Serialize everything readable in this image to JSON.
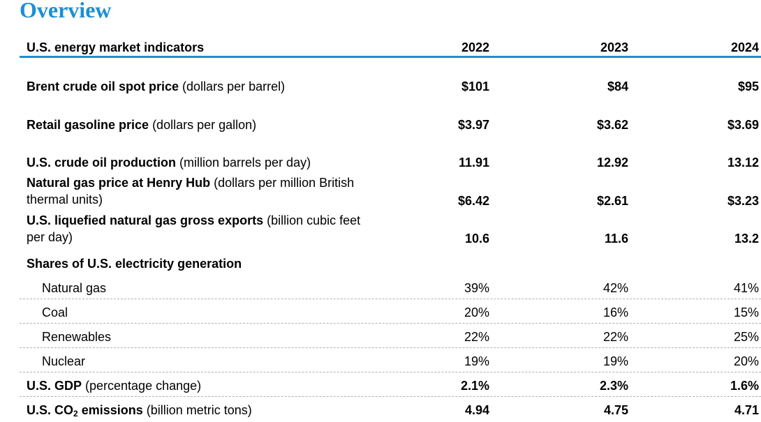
{
  "title": "Overview",
  "header": {
    "label": "U.S. energy market indicators",
    "years": [
      "2022",
      "2023",
      "2024"
    ]
  },
  "rows": [
    {
      "name": "Brent crude oil spot price",
      "unit": " (dollars per barrel)",
      "values": [
        "$101",
        "$84",
        "$95"
      ]
    },
    {
      "name": "Retail gasoline price",
      "unit": " (dollars per gallon)",
      "values": [
        "$3.97",
        "$3.62",
        "$3.69"
      ]
    },
    {
      "name": "U.S. crude oil production",
      "unit": " (million barrels per day)",
      "values": [
        "11.91",
        "12.92",
        "13.12"
      ]
    },
    {
      "name": "Natural gas price at Henry Hub",
      "unit": " (dollars per million British",
      "unit_line2": "thermal units)",
      "values": [
        "$6.42",
        "$2.61",
        "$3.23"
      ]
    },
    {
      "name": "U.S. liquefied natural gas gross exports",
      "unit": " (billion cubic feet",
      "unit_line2": "per day)",
      "values": [
        "10.6",
        "11.6",
        "13.2"
      ]
    }
  ],
  "shares": {
    "heading": "Shares of U.S. electricity generation",
    "items": [
      {
        "name": "Natural gas",
        "values": [
          "39%",
          "42%",
          "41%"
        ]
      },
      {
        "name": "Coal",
        "values": [
          "20%",
          "16%",
          "15%"
        ]
      },
      {
        "name": "Renewables",
        "values": [
          "22%",
          "22%",
          "25%"
        ]
      },
      {
        "name": "Nuclear",
        "values": [
          "19%",
          "19%",
          "20%"
        ]
      }
    ]
  },
  "gdp": {
    "name": "U.S. GDP",
    "unit": " (percentage change)",
    "values": [
      "2.1%",
      "2.3%",
      "1.6%"
    ]
  },
  "co2": {
    "name_prefix": "U.S. CO",
    "name_sub": "2",
    "name_suffix": " emissions",
    "unit": " (billion metric tons)",
    "values": [
      "4.94",
      "4.75",
      "4.71"
    ]
  },
  "colors": {
    "accent": "#1a8fd6"
  }
}
